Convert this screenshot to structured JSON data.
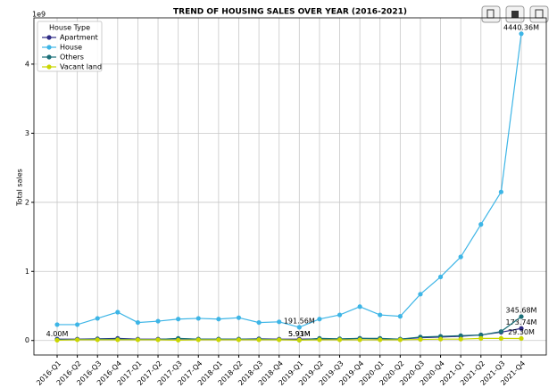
{
  "chart_data": {
    "type": "line",
    "title": "TREND OF HOUSING SALES OVER YEAR (2016-2021)",
    "y_label": "Total sales",
    "y_offset_label": "1e9",
    "legend_title": "House Type",
    "legend": "upper left",
    "grid": true,
    "categories": [
      "2016-Q1",
      "2016-Q2",
      "2016-Q3",
      "2016-Q4",
      "2017-Q1",
      "2017-Q2",
      "2017-Q3",
      "2017-Q4",
      "2018-Q1",
      "2018-Q2",
      "2018-Q3",
      "2018-Q4",
      "2019-Q1",
      "2019-Q2",
      "2019-Q3",
      "2019-Q4",
      "2020-Q1",
      "2020-Q2",
      "2020-Q3",
      "2020-Q4",
      "2021-Q1",
      "2021-Q2",
      "2021-Q3",
      "2021-Q4"
    ],
    "ylim": [
      -0.21,
      4.67
    ],
    "yticks": [
      0,
      1,
      2,
      3,
      4
    ],
    "series": [
      {
        "name": "Apartment",
        "color": "#2f2c86",
        "values": [
          0.02,
          0.02,
          0.025,
          0.03,
          0.02,
          0.02,
          0.025,
          0.02,
          0.02,
          0.02,
          0.025,
          0.02,
          0.02,
          0.025,
          0.02,
          0.03,
          0.025,
          0.02,
          0.04,
          0.05,
          0.06,
          0.08,
          0.12,
          0.17374
        ],
        "value_labels": [
          null,
          null,
          null,
          null,
          null,
          null,
          null,
          null,
          null,
          null,
          null,
          null,
          null,
          null,
          null,
          null,
          null,
          null,
          null,
          null,
          null,
          null,
          null,
          "173.74M"
        ]
      },
      {
        "name": "House",
        "color": "#3db5e6",
        "values": [
          0.23,
          0.23,
          0.32,
          0.41,
          0.26,
          0.28,
          0.31,
          0.32,
          0.31,
          0.33,
          0.26,
          0.27,
          0.19156,
          0.31,
          0.37,
          0.49,
          0.37,
          0.35,
          0.67,
          0.92,
          1.21,
          1.68,
          2.15,
          4.44036
        ],
        "value_labels": [
          null,
          null,
          null,
          null,
          null,
          null,
          null,
          null,
          null,
          null,
          null,
          null,
          "191.56M",
          null,
          null,
          null,
          null,
          null,
          null,
          null,
          null,
          null,
          null,
          "4440.36M"
        ]
      },
      {
        "name": "Others",
        "color": "#1b6f78",
        "values": [
          0.01,
          0.015,
          0.02,
          0.02,
          0.015,
          0.015,
          0.03,
          0.02,
          0.02,
          0.02,
          0.02,
          0.015,
          0.00593,
          0.03,
          0.025,
          0.03,
          0.03,
          0.02,
          0.05,
          0.06,
          0.07,
          0.08,
          0.13,
          0.34568
        ],
        "value_labels": [
          null,
          null,
          null,
          null,
          null,
          null,
          null,
          null,
          null,
          null,
          null,
          null,
          "5.93M",
          null,
          null,
          null,
          null,
          null,
          null,
          null,
          null,
          null,
          null,
          "345.68M"
        ]
      },
      {
        "name": "Vacant land",
        "color": "#c9d600",
        "values": [
          0.004,
          0.01,
          0.01,
          0.01,
          0.01,
          0.01,
          0.005,
          0.01,
          0.01,
          0.01,
          0.01,
          0.01,
          0.00591,
          0.01,
          0.01,
          0.01,
          0.01,
          0.01,
          0.015,
          0.02,
          0.02,
          0.03,
          0.03,
          0.0293
        ],
        "value_labels": [
          "4.00M",
          null,
          null,
          null,
          null,
          null,
          null,
          null,
          null,
          null,
          null,
          null,
          "5.91M",
          null,
          null,
          null,
          null,
          null,
          null,
          null,
          null,
          null,
          null,
          "29.30M"
        ]
      }
    ]
  }
}
